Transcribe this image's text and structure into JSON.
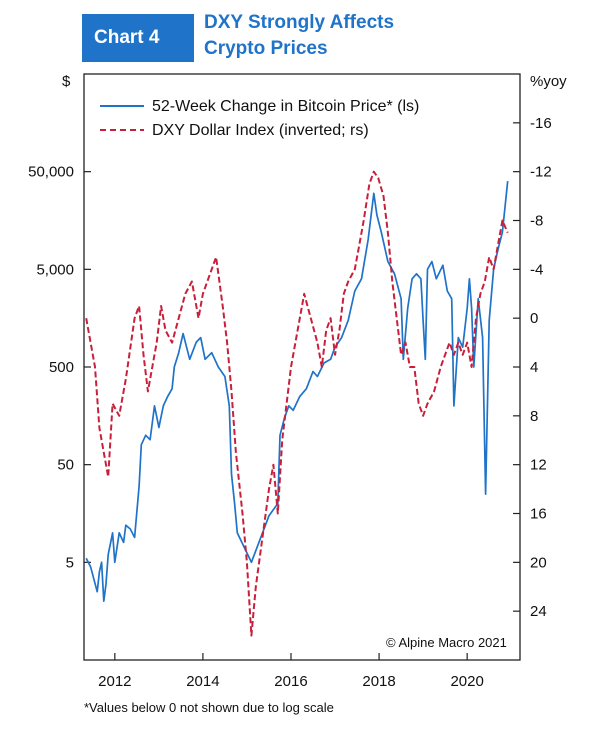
{
  "header": {
    "badge": "Chart 4",
    "title_line1": "DXY Strongly Affects",
    "title_line2": "Crypto Prices"
  },
  "footnote": "*Values below 0 not shown due to log scale",
  "credit": "© Alpine Macro 2021",
  "chart_data": {
    "type": "line",
    "y_left_unit": "$",
    "y_right_unit": "%yoy",
    "y_left_scale": "log",
    "y_left_ticks": [
      "5",
      "50",
      "500",
      "5,000",
      "50,000"
    ],
    "y_left_tick_values": [
      5,
      50,
      500,
      5000,
      50000
    ],
    "y_left_range": [
      0.5,
      500000
    ],
    "y_right_inverted": true,
    "y_right_ticks": [
      "-16",
      "-12",
      "-8",
      "-4",
      "0",
      "4",
      "8",
      "12",
      "16",
      "20",
      "24"
    ],
    "y_right_tick_values": [
      -16,
      -12,
      -8,
      -4,
      0,
      4,
      8,
      12,
      16,
      20,
      24
    ],
    "y_right_range": [
      -20,
      28
    ],
    "x_ticks": [
      "2012",
      "2014",
      "2016",
      "2018",
      "2020"
    ],
    "x_tick_values": [
      2012,
      2014,
      2016,
      2018,
      2020
    ],
    "x_range": [
      2011.3,
      2021.2
    ],
    "legend_position": "top-left",
    "grid": false,
    "series": [
      {
        "name": "52-Week Change in Bitcoin Price* (ls)",
        "axis": "left",
        "color": "#1f73c8",
        "style": "solid",
        "points": [
          [
            2011.35,
            5.5
          ],
          [
            2011.45,
            4.5
          ],
          [
            2011.6,
            2.5
          ],
          [
            2011.65,
            4
          ],
          [
            2011.7,
            5
          ],
          [
            2011.75,
            2
          ],
          [
            2011.8,
            3
          ],
          [
            2011.85,
            6
          ],
          [
            2011.95,
            10
          ],
          [
            2012.0,
            5
          ],
          [
            2012.1,
            10
          ],
          [
            2012.2,
            8
          ],
          [
            2012.25,
            12
          ],
          [
            2012.35,
            11
          ],
          [
            2012.45,
            9
          ],
          [
            2012.55,
            30
          ],
          [
            2012.6,
            80
          ],
          [
            2012.7,
            100
          ],
          [
            2012.8,
            90
          ],
          [
            2012.9,
            200
          ],
          [
            2013.0,
            120
          ],
          [
            2013.1,
            200
          ],
          [
            2013.2,
            250
          ],
          [
            2013.3,
            300
          ],
          [
            2013.35,
            500
          ],
          [
            2013.45,
            700
          ],
          [
            2013.55,
            1100
          ],
          [
            2013.7,
            600
          ],
          [
            2013.85,
            900
          ],
          [
            2013.95,
            1000
          ],
          [
            2014.05,
            600
          ],
          [
            2014.2,
            700
          ],
          [
            2014.35,
            500
          ],
          [
            2014.5,
            400
          ],
          [
            2014.6,
            200
          ],
          [
            2014.65,
            40
          ],
          [
            2014.72,
            20
          ],
          [
            2014.78,
            10
          ],
          [
            2015.1,
            5
          ],
          [
            2015.5,
            15
          ],
          [
            2015.7,
            20
          ],
          [
            2015.75,
            100
          ],
          [
            2015.85,
            150
          ],
          [
            2015.95,
            200
          ],
          [
            2016.05,
            180
          ],
          [
            2016.2,
            250
          ],
          [
            2016.35,
            300
          ],
          [
            2016.5,
            450
          ],
          [
            2016.6,
            400
          ],
          [
            2016.75,
            550
          ],
          [
            2016.9,
            600
          ],
          [
            2017.0,
            800
          ],
          [
            2017.15,
            1000
          ],
          [
            2017.3,
            1500
          ],
          [
            2017.45,
            3000
          ],
          [
            2017.6,
            4000
          ],
          [
            2017.75,
            10000
          ],
          [
            2017.88,
            30000
          ],
          [
            2017.95,
            18000
          ],
          [
            2018.05,
            12000
          ],
          [
            2018.2,
            6000
          ],
          [
            2018.35,
            4500
          ],
          [
            2018.5,
            2500
          ],
          [
            2018.55,
            600
          ],
          [
            2018.65,
            2000
          ],
          [
            2018.75,
            4000
          ],
          [
            2018.85,
            4500
          ],
          [
            2018.95,
            4000
          ],
          [
            2019.0,
            1500
          ],
          [
            2019.05,
            600
          ],
          [
            2019.1,
            5000
          ],
          [
            2019.2,
            6000
          ],
          [
            2019.3,
            4000
          ],
          [
            2019.45,
            5500
          ],
          [
            2019.55,
            3000
          ],
          [
            2019.65,
            2500
          ],
          [
            2019.7,
            200
          ],
          [
            2019.8,
            1000
          ],
          [
            2019.9,
            800
          ],
          [
            2020.0,
            2000
          ],
          [
            2020.05,
            4000
          ],
          [
            2020.1,
            2000
          ],
          [
            2020.15,
            500
          ],
          [
            2020.25,
            2500
          ],
          [
            2020.35,
            1000
          ],
          [
            2020.42,
            25
          ],
          [
            2020.5,
            1500
          ],
          [
            2020.6,
            5000
          ],
          [
            2020.7,
            8000
          ],
          [
            2020.8,
            12000
          ],
          [
            2020.92,
            40000
          ]
        ]
      },
      {
        "name": "DXY Dollar Index (inverted; rs)",
        "axis": "right",
        "color": "#c8203a",
        "style": "dashed",
        "points": [
          [
            2011.35,
            0
          ],
          [
            2011.45,
            2
          ],
          [
            2011.55,
            4
          ],
          [
            2011.65,
            9
          ],
          [
            2011.75,
            11
          ],
          [
            2011.85,
            13
          ],
          [
            2011.95,
            7
          ],
          [
            2012.1,
            8
          ],
          [
            2012.25,
            5
          ],
          [
            2012.45,
            0
          ],
          [
            2012.55,
            -1
          ],
          [
            2012.65,
            3
          ],
          [
            2012.75,
            6
          ],
          [
            2012.85,
            4
          ],
          [
            2012.95,
            2
          ],
          [
            2013.05,
            -1
          ],
          [
            2013.15,
            1
          ],
          [
            2013.3,
            2
          ],
          [
            2013.45,
            0
          ],
          [
            2013.6,
            -2
          ],
          [
            2013.75,
            -3
          ],
          [
            2013.9,
            0
          ],
          [
            2014.0,
            -2
          ],
          [
            2014.1,
            -3
          ],
          [
            2014.2,
            -4
          ],
          [
            2014.3,
            -5
          ],
          [
            2014.45,
            -1
          ],
          [
            2014.55,
            2
          ],
          [
            2014.65,
            6
          ],
          [
            2014.75,
            11
          ],
          [
            2014.9,
            16
          ],
          [
            2015.0,
            20
          ],
          [
            2015.1,
            26
          ],
          [
            2015.2,
            22
          ],
          [
            2015.35,
            18
          ],
          [
            2015.5,
            14
          ],
          [
            2015.6,
            12
          ],
          [
            2015.7,
            16
          ],
          [
            2015.8,
            10
          ],
          [
            2015.9,
            7
          ],
          [
            2016.0,
            4
          ],
          [
            2016.15,
            1
          ],
          [
            2016.3,
            -2
          ],
          [
            2016.45,
            0
          ],
          [
            2016.6,
            2
          ],
          [
            2016.7,
            4
          ],
          [
            2016.8,
            1
          ],
          [
            2016.9,
            0
          ],
          [
            2017.0,
            3
          ],
          [
            2017.1,
            1
          ],
          [
            2017.2,
            -2
          ],
          [
            2017.3,
            -3
          ],
          [
            2017.45,
            -4
          ],
          [
            2017.55,
            -6
          ],
          [
            2017.65,
            -8
          ],
          [
            2017.78,
            -11
          ],
          [
            2017.88,
            -12
          ],
          [
            2017.98,
            -11.5
          ],
          [
            2018.1,
            -10
          ],
          [
            2018.2,
            -7
          ],
          [
            2018.3,
            -3
          ],
          [
            2018.4,
            0
          ],
          [
            2018.5,
            3
          ],
          [
            2018.6,
            2
          ],
          [
            2018.7,
            4
          ],
          [
            2018.8,
            4
          ],
          [
            2018.9,
            7
          ],
          [
            2019.0,
            8
          ],
          [
            2019.1,
            7
          ],
          [
            2019.25,
            6
          ],
          [
            2019.4,
            4
          ],
          [
            2019.5,
            3
          ],
          [
            2019.6,
            2
          ],
          [
            2019.7,
            3
          ],
          [
            2019.8,
            2
          ],
          [
            2019.9,
            3
          ],
          [
            2020.0,
            2
          ],
          [
            2020.1,
            4
          ],
          [
            2020.2,
            0
          ],
          [
            2020.3,
            -2
          ],
          [
            2020.4,
            -3
          ],
          [
            2020.5,
            -5
          ],
          [
            2020.6,
            -4
          ],
          [
            2020.7,
            -6
          ],
          [
            2020.8,
            -8
          ],
          [
            2020.92,
            -7
          ]
        ]
      }
    ]
  }
}
